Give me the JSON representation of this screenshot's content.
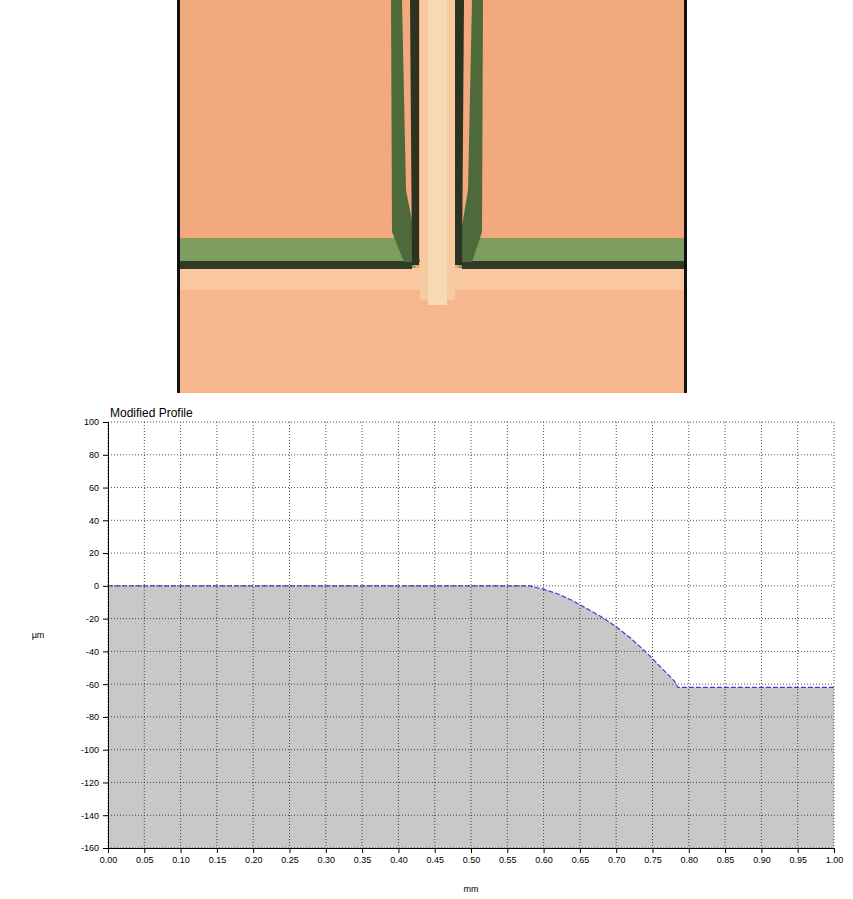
{
  "chart_data": {
    "type": "area",
    "title": "Modified Profile",
    "x_label": "mm",
    "y_label": "µm",
    "x": [
      0,
      0.58,
      0.59,
      0.6,
      0.62,
      0.64,
      0.66,
      0.68,
      0.7,
      0.72,
      0.74,
      0.76,
      0.78,
      0.785,
      1.0
    ],
    "series": [
      {
        "color": "#3c3cd2",
        "line_style": "dashed",
        "values": [
          0,
          0,
          -1,
          -2,
          -5,
          -9,
          -14,
          -19,
          -25,
          -32,
          -40,
          -49,
          -58,
          -62,
          -62
        ]
      }
    ],
    "color": "#c8c8c8",
    "xlim": [
      0,
      1
    ],
    "ylim": [
      -160,
      100
    ],
    "xticks": [
      {
        "value": 0,
        "label": "0.00"
      },
      {
        "value": 0.05,
        "label": "0.05"
      },
      {
        "value": 0.1,
        "label": "0.10"
      },
      {
        "value": 0.15,
        "label": "0.15"
      },
      {
        "value": 0.2,
        "label": "0.20"
      },
      {
        "value": 0.25,
        "label": "0.25"
      },
      {
        "value": 0.3,
        "label": "0.30"
      },
      {
        "value": 0.35,
        "label": "0.35"
      },
      {
        "value": 0.4,
        "label": "0.40"
      },
      {
        "value": 0.45,
        "label": "0.45"
      },
      {
        "value": 0.5,
        "label": "0.50"
      },
      {
        "value": 0.55,
        "label": "0.55"
      },
      {
        "value": 0.6,
        "label": "0.60"
      },
      {
        "value": 0.65,
        "label": "0.65"
      },
      {
        "value": 0.7,
        "label": "0.70"
      },
      {
        "value": 0.75,
        "label": "0.75"
      },
      {
        "value": 0.8,
        "label": "0.80"
      },
      {
        "value": 0.85,
        "label": "0.85"
      },
      {
        "value": 0.9,
        "label": "0.90"
      },
      {
        "value": 0.95,
        "label": "0.95"
      },
      {
        "value": 1.0,
        "label": "1.00"
      }
    ],
    "yticks": [
      -160,
      -140,
      -120,
      -100,
      -80,
      -60,
      -40,
      -20,
      0,
      20,
      40,
      60,
      80,
      100
    ],
    "grid": true
  }
}
